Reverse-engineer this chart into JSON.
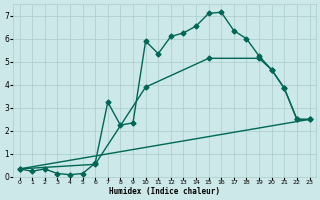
{
  "xlabel": "Humidex (Indice chaleur)",
  "xlim": [
    -0.5,
    23.5
  ],
  "ylim": [
    0,
    7.5
  ],
  "xticks": [
    0,
    1,
    2,
    3,
    4,
    5,
    6,
    7,
    8,
    9,
    10,
    11,
    12,
    13,
    14,
    15,
    16,
    17,
    18,
    19,
    20,
    21,
    22,
    23
  ],
  "yticks": [
    0,
    1,
    2,
    3,
    4,
    5,
    6,
    7
  ],
  "bg_color": "#cce8e8",
  "grid_color": "#aacccc",
  "line_color": "#006655",
  "line1_x": [
    0,
    1,
    2,
    3,
    4,
    5,
    6,
    7,
    8,
    9,
    10,
    11,
    12,
    13,
    14,
    15,
    16,
    17,
    18,
    19,
    20,
    21,
    22,
    23
  ],
  "line1_y": [
    0.35,
    0.25,
    0.35,
    0.15,
    0.1,
    0.15,
    0.6,
    3.25,
    2.25,
    2.35,
    5.9,
    5.35,
    6.1,
    6.25,
    6.55,
    7.1,
    7.15,
    6.35,
    6.0,
    5.25,
    4.65,
    3.85,
    2.5,
    2.5
  ],
  "line2_x": [
    0,
    6,
    10,
    15,
    19,
    20,
    21,
    22,
    23
  ],
  "line2_y": [
    0.35,
    0.55,
    3.9,
    5.15,
    5.15,
    4.65,
    3.85,
    2.5,
    2.5
  ],
  "line3_x": [
    0,
    23
  ],
  "line3_y": [
    0.35,
    2.5
  ],
  "markersize": 2.5,
  "linewidth": 1.0
}
